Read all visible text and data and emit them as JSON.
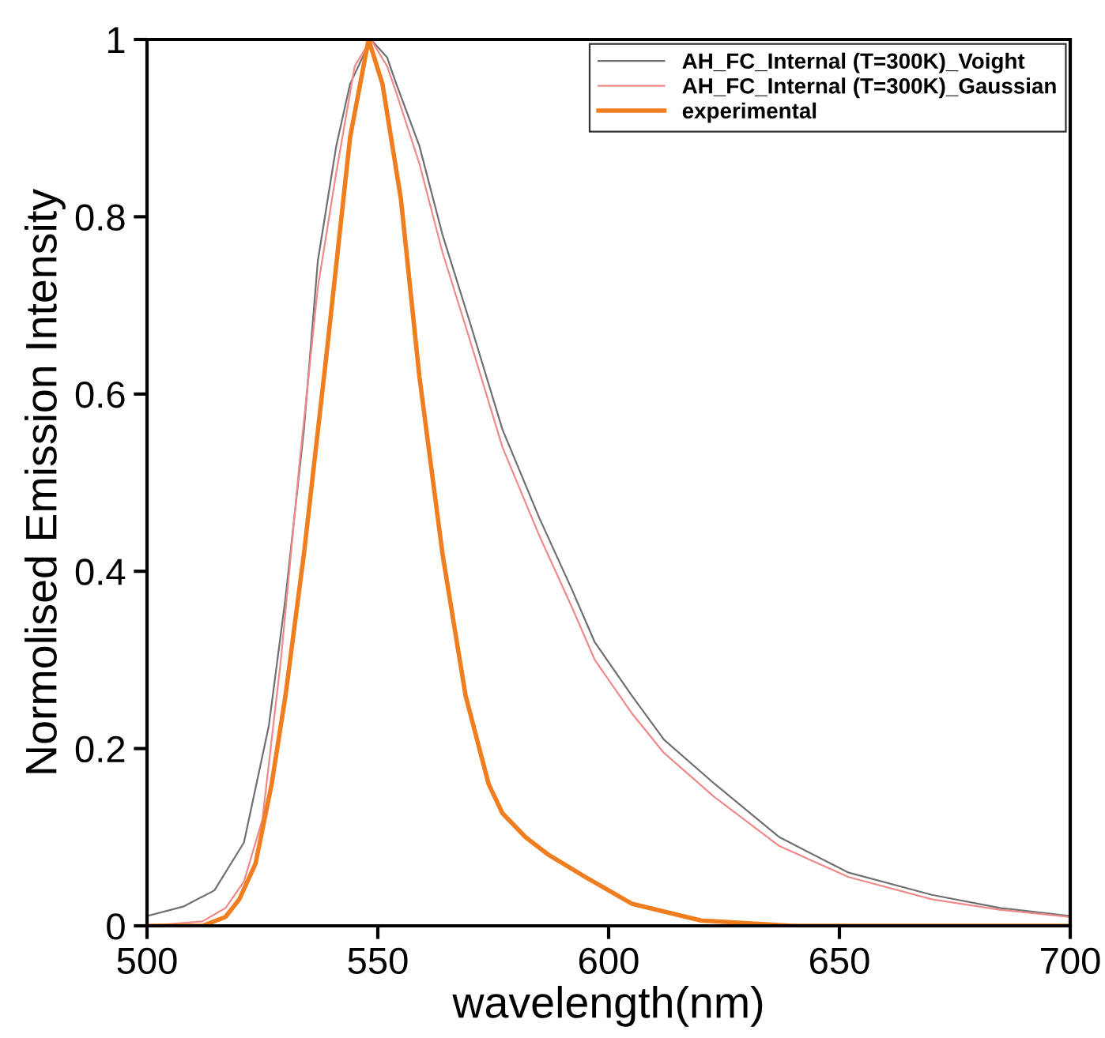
{
  "chart_data": {
    "type": "line",
    "xlabel": "wavelength(nm)",
    "ylabel": "Normolised Emission Intensity",
    "xlim": [
      500,
      700
    ],
    "ylim": [
      0,
      1
    ],
    "xticks": [
      500,
      550,
      600,
      650,
      700
    ],
    "yticks": [
      0,
      0.2,
      0.4,
      0.6,
      0.8,
      1
    ],
    "grid": false,
    "legend": "top right",
    "marker": "none",
    "line_style": "solid",
    "series": [
      {
        "name": "AH_FC_Internal (T=300K)_Voight",
        "color": "#707070",
        "x": [
          500,
          508,
          514.6,
          521,
          526.4,
          530,
          534,
          537,
          541,
          544,
          548.5,
          552,
          554,
          559,
          564,
          570,
          577,
          585,
          592,
          597,
          605,
          612,
          623,
          637,
          652,
          670,
          685,
          700
        ],
        "values": [
          0.011,
          0.022,
          0.04,
          0.094,
          0.226,
          0.37,
          0.56,
          0.75,
          0.88,
          0.95,
          1,
          0.98,
          0.95,
          0.88,
          0.78,
          0.68,
          0.56,
          0.46,
          0.38,
          0.32,
          0.26,
          0.21,
          0.16,
          0.1,
          0.06,
          0.035,
          0.02,
          0.011
        ]
      },
      {
        "name": "AH_FC_Internal (T=300K)_Gaussian",
        "color": "#f08a8a",
        "x": [
          500,
          512,
          517,
          521,
          525,
          529,
          533,
          537,
          541,
          545,
          548.5,
          552,
          554,
          559,
          564,
          570,
          577,
          585,
          592,
          597,
          605,
          612,
          623,
          637,
          652,
          670,
          685,
          700
        ],
        "values": [
          0,
          0.005,
          0.02,
          0.05,
          0.12,
          0.3,
          0.52,
          0.72,
          0.85,
          0.97,
          1,
          0.97,
          0.94,
          0.86,
          0.76,
          0.66,
          0.54,
          0.44,
          0.36,
          0.3,
          0.24,
          0.195,
          0.145,
          0.09,
          0.055,
          0.03,
          0.018,
          0.01
        ]
      },
      {
        "name": "experimental",
        "color": "#f07d1e",
        "x": [
          500,
          512,
          517,
          520,
          523.5,
          527,
          530,
          534,
          539,
          544,
          548,
          551,
          555,
          559,
          564,
          569,
          574,
          577,
          582,
          587,
          595,
          605,
          620,
          640,
          700
        ],
        "values": [
          0,
          0,
          0.01,
          0.03,
          0.07,
          0.16,
          0.26,
          0.42,
          0.65,
          0.89,
          1,
          0.95,
          0.82,
          0.62,
          0.42,
          0.26,
          0.16,
          0.127,
          0.1,
          0.08,
          0.055,
          0.025,
          0.006,
          0,
          0
        ]
      }
    ]
  }
}
